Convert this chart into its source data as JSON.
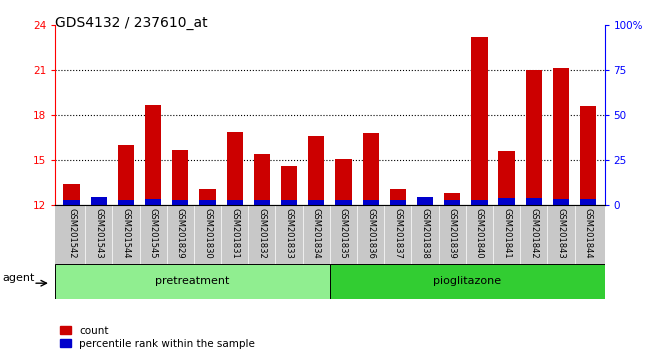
{
  "title": "GDS4132 / 237610_at",
  "samples": [
    "GSM201542",
    "GSM201543",
    "GSM201544",
    "GSM201545",
    "GSM201829",
    "GSM201830",
    "GSM201831",
    "GSM201832",
    "GSM201833",
    "GSM201834",
    "GSM201835",
    "GSM201836",
    "GSM201837",
    "GSM201838",
    "GSM201839",
    "GSM201840",
    "GSM201841",
    "GSM201842",
    "GSM201843",
    "GSM201844"
  ],
  "count_values": [
    13.4,
    12.3,
    16.0,
    18.7,
    15.7,
    13.1,
    16.9,
    15.4,
    14.6,
    16.6,
    15.1,
    16.8,
    13.1,
    12.3,
    12.8,
    23.2,
    15.6,
    21.0,
    21.1,
    18.6
  ],
  "blue_bar_height": [
    0.35,
    0.55,
    0.35,
    0.4,
    0.35,
    0.35,
    0.35,
    0.35,
    0.35,
    0.35,
    0.35,
    0.35,
    0.35,
    0.55,
    0.35,
    0.35,
    0.5,
    0.5,
    0.45,
    0.45
  ],
  "group1_label": "pretreatment",
  "group2_label": "pioglitazone",
  "group1_count": 10,
  "group2_count": 10,
  "ymin": 12,
  "ymax": 24,
  "yticks": [
    12,
    15,
    18,
    21,
    24
  ],
  "right_yticks": [
    0,
    25,
    50,
    75,
    100
  ],
  "right_yticklabels": [
    "0",
    "25",
    "50",
    "75",
    "100%"
  ],
  "bar_color_red": "#cc0000",
  "bar_color_blue": "#0000cc",
  "group1_bg": "#90ee90",
  "group2_bg": "#32cd32",
  "sample_band_bg": "#c8c8c8",
  "agent_label": "agent",
  "legend_count": "count",
  "legend_percentile": "percentile rank within the sample",
  "title_fontsize": 10,
  "bar_width": 0.6,
  "gridline_yticks": [
    15,
    18,
    21
  ]
}
